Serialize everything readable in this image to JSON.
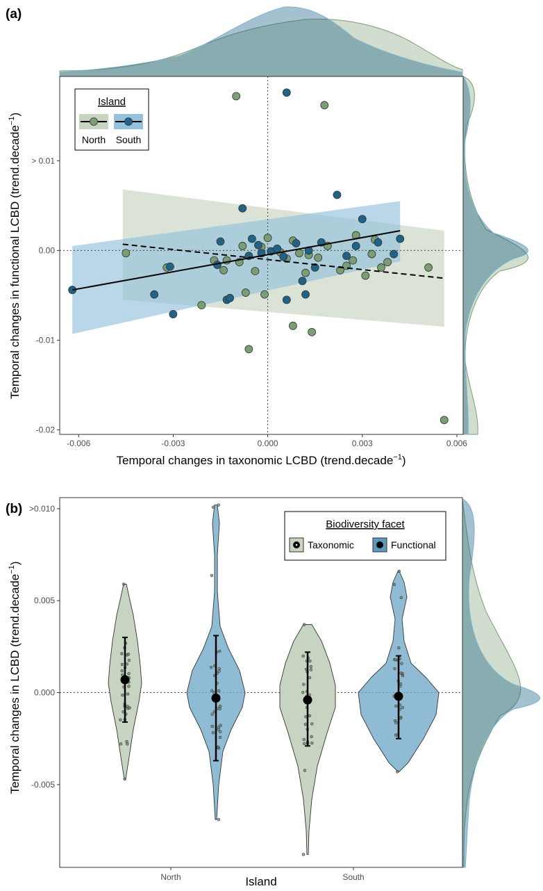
{
  "colors": {
    "north": "#7b9d73",
    "north_fill": "#c7d4c2",
    "south": "#1f6486",
    "south_fill": "#94c2db",
    "overlap": "#4f8a8c",
    "line": "#000000"
  },
  "chart_data": [
    {
      "id": "a",
      "panel_label": "(a)",
      "type": "scatter",
      "xlabel": "Temporal changes in taxonomic LCBD (trend.decade",
      "xlabel_sup": "−1",
      "xlabel_end": ")",
      "ylabel": "Temporal changes in functional LCBD (trend.decade",
      "ylabel_sup": "−1",
      "ylabel_end": ")",
      "xlim": [
        -0.0066,
        0.0062
      ],
      "ylim": [
        -0.0205,
        0.0194
      ],
      "x_ticks": [
        -0.006,
        -0.003,
        0.0,
        0.003,
        0.006
      ],
      "x_tick_labels": [
        "-0.006",
        "-0.003",
        "0.000",
        "0.003",
        "0.006"
      ],
      "y_ticks": [
        -0.02,
        -0.01,
        0.0,
        0.01
      ],
      "y_tick_labels": [
        "-0.02",
        "-0.01",
        "0.00",
        "> 0.01"
      ],
      "grid": false,
      "legend": {
        "title": "Island",
        "position": "top-left",
        "entries": [
          "North",
          "South"
        ]
      },
      "series": [
        {
          "name": "North",
          "line_style": "dashed",
          "fit": {
            "x": [
              -0.0046,
              0.0056
            ],
            "y": [
              0.0007,
              -0.0031
            ]
          },
          "band": {
            "x": [
              -0.0046,
              0.0056
            ],
            "lower": [
              -0.0055,
              -0.0085
            ],
            "upper": [
              0.0068,
              0.0022
            ]
          },
          "points": [
            [
              -0.0045,
              -0.0003
            ],
            [
              -0.0032,
              -0.0019
            ],
            [
              -0.0021,
              -0.0061
            ],
            [
              -0.0017,
              -0.0011
            ],
            [
              -0.0014,
              -0.0022
            ],
            [
              -0.0013,
              -0.0011
            ],
            [
              -0.001,
              0.0172
            ],
            [
              -0.0009,
              -0.0013
            ],
            [
              -0.0008,
              0.0005
            ],
            [
              -0.0007,
              -0.0047
            ],
            [
              -0.0006,
              -0.011
            ],
            [
              -0.0004,
              -0.0023
            ],
            [
              -0.0002,
              0.0004
            ],
            [
              -0.0001,
              -0.0049
            ],
            [
              0.0,
              0.0014
            ],
            [
              0.0004,
              -0.0002
            ],
            [
              0.0006,
              -0.0009
            ],
            [
              0.0008,
              0.0011
            ],
            [
              0.0008,
              -0.0084
            ],
            [
              0.001,
              -0.0003
            ],
            [
              0.0012,
              -0.0025
            ],
            [
              0.0013,
              -0.0005
            ],
            [
              0.0014,
              -0.0091
            ],
            [
              0.0016,
              -0.0008
            ],
            [
              0.0018,
              0.0162
            ],
            [
              0.0019,
              0.0005
            ],
            [
              0.0023,
              -0.0022
            ],
            [
              0.0025,
              -0.0017
            ],
            [
              0.0027,
              -0.0011
            ],
            [
              0.0028,
              0.0017
            ],
            [
              0.0031,
              -0.0028
            ],
            [
              0.0033,
              -0.0004
            ],
            [
              0.0034,
              0.0012
            ],
            [
              0.0036,
              -0.0019
            ],
            [
              0.0038,
              -0.0013
            ],
            [
              0.0051,
              -0.0019
            ],
            [
              0.0056,
              -0.0189
            ]
          ]
        },
        {
          "name": "South",
          "line_style": "solid",
          "fit": {
            "x": [
              -0.0062,
              0.0042
            ],
            "y": [
              -0.0044,
              0.0022
            ]
          },
          "band": {
            "x": [
              -0.0062,
              0.0042
            ],
            "lower": [
              -0.0093,
              -0.0012
            ],
            "upper": [
              0.0005,
              0.0055
            ]
          },
          "points": [
            [
              -0.0062,
              -0.0044
            ],
            [
              -0.0036,
              -0.0049
            ],
            [
              -0.0031,
              -0.0018
            ],
            [
              -0.003,
              -0.0071
            ],
            [
              -0.0016,
              -0.0016
            ],
            [
              -0.0015,
              0.001
            ],
            [
              -0.0013,
              -0.0055
            ],
            [
              -0.0012,
              -0.0053
            ],
            [
              -0.0008,
              0.0047
            ],
            [
              -0.0006,
              -0.0006
            ],
            [
              -0.0005,
              0.0013
            ],
            [
              -0.0003,
              0.0006
            ],
            [
              -0.0002,
              -0.0003
            ],
            [
              0.0001,
              -0.0001
            ],
            [
              0.0003,
              0.0002
            ],
            [
              0.0005,
              -0.0007
            ],
            [
              0.0006,
              -0.0055
            ],
            [
              0.0006,
              0.0176
            ],
            [
              0.0009,
              0.0008
            ],
            [
              0.0011,
              -0.0034
            ],
            [
              0.0012,
              -0.0049
            ],
            [
              0.0013,
              0.0
            ],
            [
              0.0015,
              -0.0019
            ],
            [
              0.0017,
              0.0009
            ],
            [
              0.0022,
              0.0062
            ],
            [
              0.0025,
              -0.0006
            ],
            [
              0.0028,
              0.0005
            ],
            [
              0.003,
              0.0035
            ],
            [
              0.0035,
              0.0009
            ],
            [
              0.004,
              -0.0004
            ],
            [
              0.0042,
              0.0013
            ]
          ]
        }
      ]
    },
    {
      "id": "b",
      "panel_label": "(b)",
      "type": "violin",
      "xlabel": "Island",
      "ylabel": "Temporal changes in LCBD (trend.decade",
      "ylabel_sup": "−1",
      "ylabel_end": ")",
      "categories": [
        "North",
        "South"
      ],
      "ylim": [
        -0.0095,
        0.0106
      ],
      "y_ticks": [
        -0.005,
        0.0,
        0.005,
        0.01
      ],
      "y_tick_labels": [
        "-0.005",
        "0.000",
        "0.005",
        ">0.010"
      ],
      "grid": false,
      "legend": {
        "title": "Biodiversity facet",
        "position": "top-right",
        "entries": [
          "Taxonomic",
          "Functional"
        ]
      },
      "groups": [
        {
          "island": "North",
          "facet": "Taxonomic",
          "mean": 0.0007,
          "lower": -0.0016,
          "upper": 0.003,
          "min": -0.0047,
          "max": 0.0059
        },
        {
          "island": "North",
          "facet": "Functional",
          "mean": -0.0003,
          "lower": -0.0037,
          "upper": 0.0031,
          "min": -0.0069,
          "max": 0.0102
        },
        {
          "island": "South",
          "facet": "Taxonomic",
          "mean": -0.0004,
          "lower": -0.0029,
          "upper": 0.0022,
          "min": -0.0088,
          "max": 0.0037
        },
        {
          "island": "South",
          "facet": "Functional",
          "mean": -0.0002,
          "lower": -0.0025,
          "upper": 0.002,
          "min": -0.0043,
          "max": 0.0066
        }
      ]
    }
  ]
}
